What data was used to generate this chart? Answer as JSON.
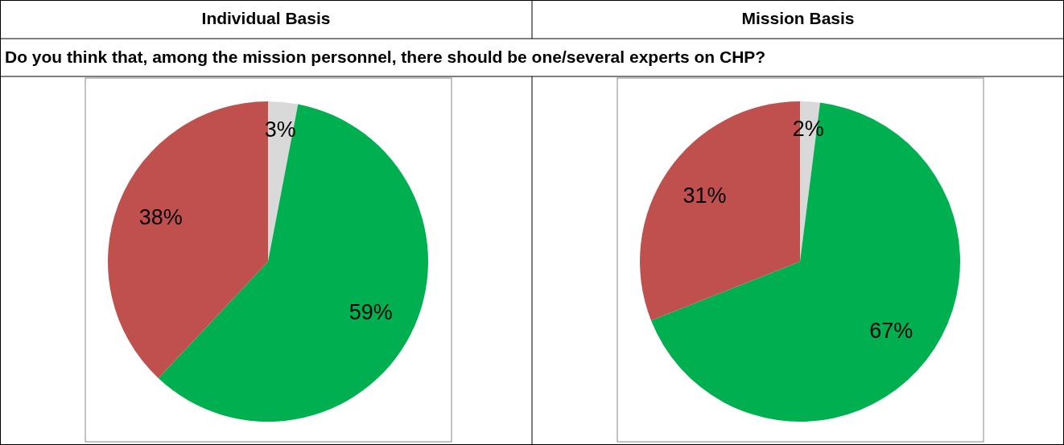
{
  "chart_data": [
    {
      "type": "pie",
      "title": "Individual Basis",
      "subtitle": "Do you think that, among the mission personnel, there should be one/several experts on CHP?",
      "categories": [
        null,
        null,
        null
      ],
      "values": [
        3,
        59,
        38
      ],
      "colors": [
        "#d9d9d9",
        "#00b050",
        "#c0504d"
      ],
      "value_labels": [
        "3%",
        "59%",
        "38%"
      ]
    },
    {
      "type": "pie",
      "title": "Mission Basis",
      "categories": [
        null,
        null,
        null
      ],
      "values": [
        2,
        67,
        31
      ],
      "colors": [
        "#d9d9d9",
        "#00b050",
        "#c0504d"
      ],
      "value_labels": [
        "2%",
        "67%",
        "31%"
      ]
    }
  ]
}
